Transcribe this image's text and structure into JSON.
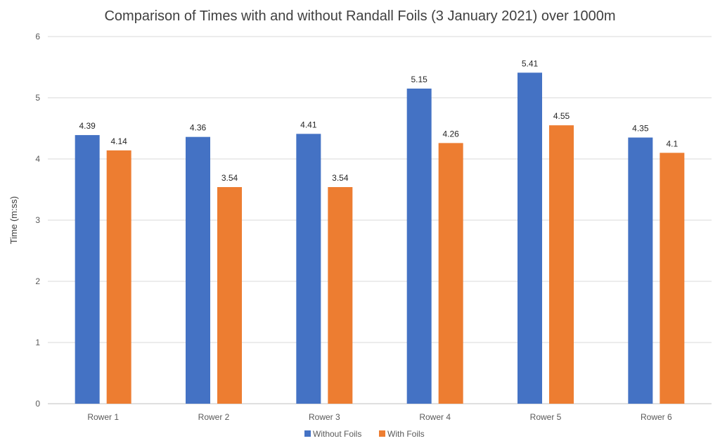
{
  "chart_data": {
    "type": "bar",
    "title": "Comparison of Times with and without Randall Foils (3 January 2021) over 1000m",
    "xlabel": "",
    "ylabel": "Time (m:ss)",
    "ylim": [
      0,
      6
    ],
    "yticks": [
      0,
      1,
      2,
      3,
      4,
      5,
      6
    ],
    "grid": true,
    "legend_position": "bottom",
    "categories": [
      "Rower 1",
      "Rower 2",
      "Rower 3",
      "Rower 4",
      "Rower 5",
      "Rower 6"
    ],
    "series": [
      {
        "name": "Without Foils",
        "color": "#4472C4",
        "values": [
          4.39,
          4.36,
          4.41,
          5.15,
          5.41,
          4.35
        ],
        "labels": [
          "4.39",
          "4.36",
          "4.41",
          "5.15",
          "5.41",
          "4.35"
        ]
      },
      {
        "name": "With Foils",
        "color": "#ED7D31",
        "values": [
          4.14,
          3.54,
          3.54,
          4.26,
          4.55,
          4.1
        ],
        "labels": [
          "4.14",
          "3.54",
          "3.54",
          "4.26",
          "4.55",
          "4.1"
        ]
      }
    ]
  }
}
